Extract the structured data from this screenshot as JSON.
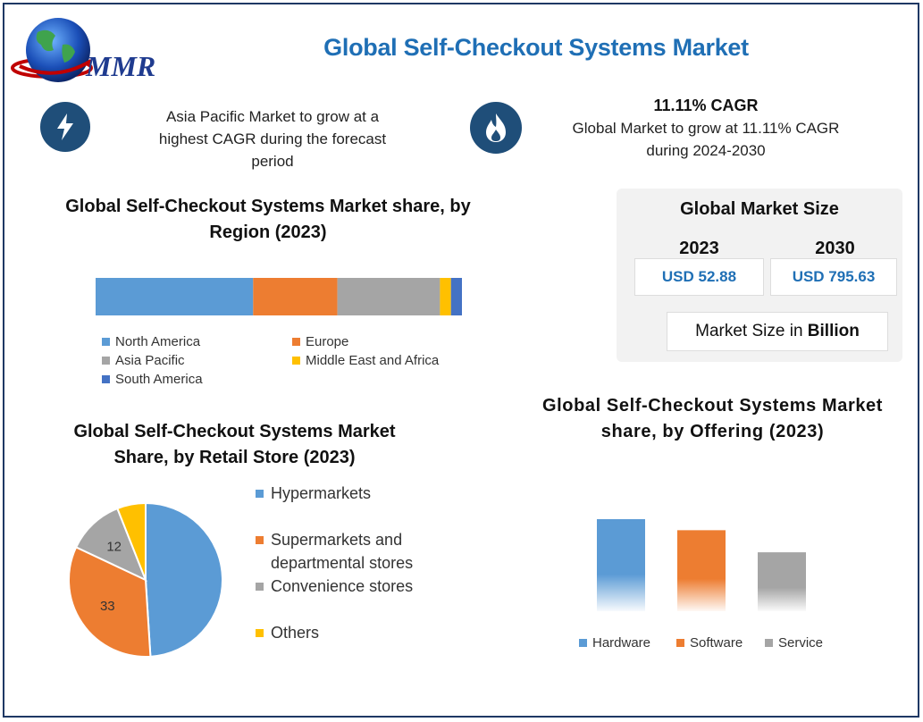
{
  "title": "Global Self-Checkout Systems Market",
  "logo": {
    "text": "MMR"
  },
  "info_left": {
    "text": "Asia Pacific Market to grow at a highest CAGR during the forecast period",
    "icon": "lightning-icon"
  },
  "info_right": {
    "heading": "11.11% CAGR",
    "text": "Global Market to grow at 11.11% CAGR during 2024-2030",
    "icon": "flame-icon"
  },
  "market_size": {
    "title": "Global Market Size",
    "year_a": "2023",
    "value_a": "USD 52.88",
    "year_b": "2030",
    "value_b": "USD 795.63",
    "unit_prefix": "Market Size in ",
    "unit_bold": "Billion"
  },
  "colors": {
    "blue": "#5b9bd5",
    "orange": "#ed7d31",
    "gray": "#a5a5a5",
    "yellow": "#ffc000",
    "darkblue": "#4472c4",
    "title": "#1f6fb5"
  },
  "chart_data": [
    {
      "type": "bar",
      "stacked": true,
      "orientation": "horizontal",
      "title": "Global Self-Checkout Systems Market share, by Region (2023)",
      "series": [
        {
          "name": "North America",
          "value": 43,
          "color": "#5b9bd5"
        },
        {
          "name": "Europe",
          "value": 23,
          "color": "#ed7d31"
        },
        {
          "name": "Asia Pacific",
          "value": 28,
          "color": "#a5a5a5"
        },
        {
          "name": "Middle East and Africa",
          "value": 3,
          "color": "#ffc000"
        },
        {
          "name": "South America",
          "value": 3,
          "color": "#4472c4"
        }
      ]
    },
    {
      "type": "pie",
      "title": "Global Self-Checkout Systems Market Share, by Retail Store (2023)",
      "slices": [
        {
          "name": "Hypermarkets",
          "value": 49,
          "color": "#5b9bd5",
          "label": ""
        },
        {
          "name": "Supermarkets and departmental stores",
          "value": 33,
          "color": "#ed7d31",
          "label": "33"
        },
        {
          "name": "Convenience stores",
          "value": 12,
          "color": "#a5a5a5",
          "label": "12"
        },
        {
          "name": "Others",
          "value": 6,
          "color": "#ffc000",
          "label": ""
        }
      ]
    },
    {
      "type": "bar",
      "title": "Global Self-Checkout Systems Market share, by Offering (2023)",
      "categories": [
        "Hardware",
        "Software",
        "Service"
      ],
      "values": [
        100,
        88,
        64
      ],
      "colors": [
        "#5b9bd5",
        "#ed7d31",
        "#a5a5a5"
      ]
    }
  ]
}
